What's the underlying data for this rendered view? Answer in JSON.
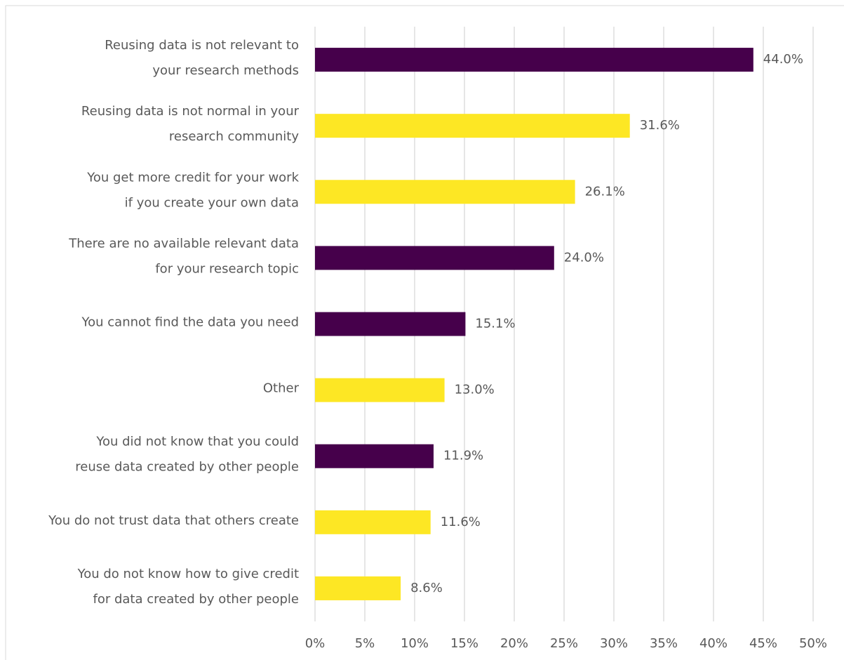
{
  "chart_data": {
    "type": "hbar",
    "categories": [
      [
        "Reusing data is not relevant to",
        "your research methods"
      ],
      [
        "Reusing data is not normal in your",
        "research community"
      ],
      [
        "You get more credit for your work",
        "if you create your own data"
      ],
      [
        "There are no available relevant data",
        "for your research topic"
      ],
      [
        "You cannot find the data you need"
      ],
      [
        "Other"
      ],
      [
        "You did not know that you could",
        "reuse data created by other people"
      ],
      [
        "You do not trust data that others create"
      ],
      [
        "You do not know how to give credit",
        "for data created by other people"
      ]
    ],
    "values": [
      44.0,
      31.6,
      26.1,
      24.0,
      15.1,
      13.0,
      11.9,
      11.6,
      8.6
    ],
    "value_labels": [
      "44.0%",
      "31.6%",
      "26.1%",
      "24.0%",
      "15.1%",
      "13.0%",
      "11.9%",
      "11.6%",
      "8.6%"
    ],
    "colors": [
      "#46004b",
      "#fde724",
      "#fde724",
      "#46004b",
      "#46004b",
      "#fde724",
      "#46004b",
      "#fde724",
      "#fde724"
    ],
    "xlim": [
      0,
      50
    ],
    "xticks": [
      {
        "value": 0,
        "label": "0%"
      },
      {
        "value": 5,
        "label": "5%"
      },
      {
        "value": 10,
        "label": "10%"
      },
      {
        "value": 15,
        "label": "15%"
      },
      {
        "value": 20,
        "label": "20%"
      },
      {
        "value": 25,
        "label": "25%"
      },
      {
        "value": 30,
        "label": "30%"
      },
      {
        "value": 35,
        "label": "35%"
      },
      {
        "value": 40,
        "label": "40%"
      },
      {
        "value": 45,
        "label": "45%"
      },
      {
        "value": 50,
        "label": "50%"
      }
    ],
    "grid": true
  }
}
